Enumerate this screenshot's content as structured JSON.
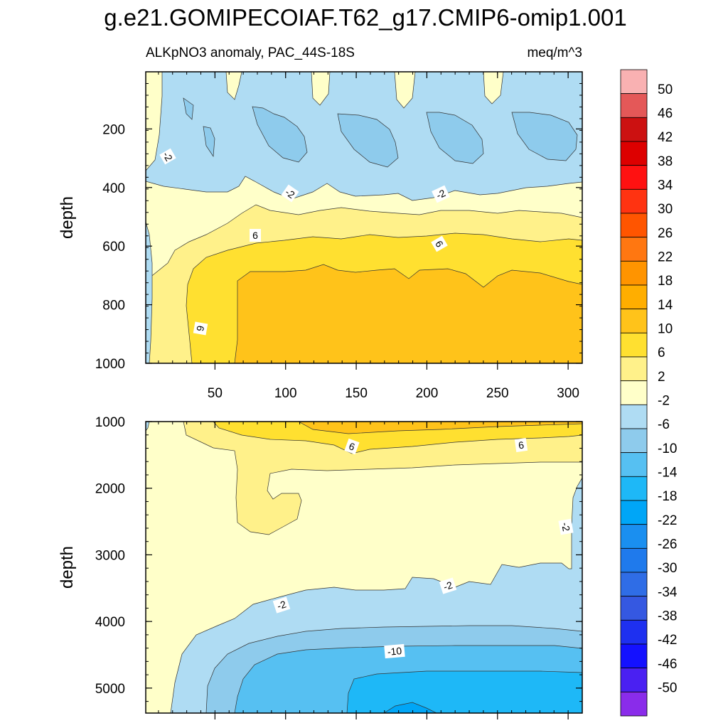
{
  "title": "g.e21.GOMIPECOIAF.T62_g17.CMIP6-omip1.001",
  "chart_data": {
    "type": "heatmap",
    "subtitle_left": "ALKpNO3 anomaly, PAC_44S-18S",
    "subtitle_right": "meq/m^3",
    "x_range": [
      1,
      310
    ],
    "x_ticks": [
      "50",
      "100",
      "150",
      "200",
      "250",
      "300"
    ],
    "panels": [
      {
        "name": "upper",
        "ylabel": "depth",
        "ylim": [
          5,
          1000
        ],
        "y_ticks": [
          "200",
          "400",
          "600",
          "800",
          "1000"
        ],
        "contour_labels": [
          "-2",
          "-2",
          "-2",
          "6",
          "6",
          "6"
        ]
      },
      {
        "name": "lower",
        "ylabel": "depth",
        "ylim": [
          1000,
          5375
        ],
        "y_ticks": [
          "1000",
          "2000",
          "3000",
          "4000",
          "5000"
        ],
        "contour_labels": [
          "6",
          "6",
          "-2",
          "-2",
          "-2",
          "-10"
        ]
      }
    ],
    "colorbar": {
      "levels": [
        "50",
        "46",
        "42",
        "38",
        "34",
        "30",
        "26",
        "22",
        "18",
        "14",
        "10",
        "6",
        "2",
        "-2",
        "-6",
        "-10",
        "-14",
        "-18",
        "-22",
        "-26",
        "-30",
        "-34",
        "-38",
        "-42",
        "-46",
        "-50"
      ],
      "colors": [
        "#f9b1b2",
        "#e45858",
        "#cc1111",
        "#dd0000",
        "#ff1111",
        "#ff3311",
        "#ff5500",
        "#ff7711",
        "#ff9400",
        "#ffae00",
        "#ffc31a",
        "#ffe030",
        "#fff18a",
        "#ffffc9",
        "#afdcf3",
        "#8ecbec",
        "#56c0f2",
        "#1eb8f7",
        "#00a6f7",
        "#1a8ff0",
        "#1f7aec",
        "#2f6de6",
        "#3558e1",
        "#1e30f0",
        "#1411ff",
        "#4a20f2",
        "#8a2cea"
      ]
    }
  }
}
